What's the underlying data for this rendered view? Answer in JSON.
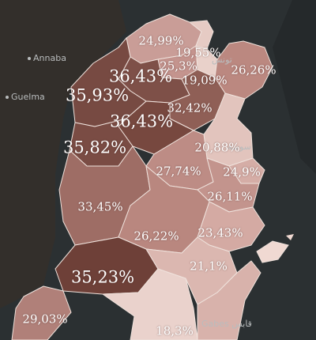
{
  "places": {
    "annaba": "Annaba",
    "guelma": "Guelma",
    "gabes": "Gabes",
    "gabes_ar": "قابس",
    "sousse_ar": "سوسة",
    "tunis_ar": "تونس"
  },
  "regions": [
    {
      "id": "bizerte",
      "value": "24,99%"
    },
    {
      "id": "ariana",
      "value": "19,55%"
    },
    {
      "id": "manouba",
      "value": "25,3%"
    },
    {
      "id": "tunis",
      "value": "19,09%"
    },
    {
      "id": "nabeul",
      "value": "26,26%"
    },
    {
      "id": "beja",
      "value": "36,43%"
    },
    {
      "id": "jendouba",
      "value": "35,93%"
    },
    {
      "id": "zaghouan",
      "value": "32,42%"
    },
    {
      "id": "siliana",
      "value": "36,43%"
    },
    {
      "id": "kef",
      "value": "35,82%"
    },
    {
      "id": "sousse",
      "value": "20,88%"
    },
    {
      "id": "kairouan",
      "value": "27,74%"
    },
    {
      "id": "monastir",
      "value": "24,9%"
    },
    {
      "id": "mahdia",
      "value": "26,11%"
    },
    {
      "id": "kasserine",
      "value": "33,45%"
    },
    {
      "id": "sidibouzid",
      "value": "26,22%"
    },
    {
      "id": "sfax",
      "value": "23,43%"
    },
    {
      "id": "gafsa",
      "value": "35,23%"
    },
    {
      "id": "tozeur",
      "value": "29,03%"
    },
    {
      "id": "kebili",
      "value": "18,3%"
    },
    {
      "id": "gabes",
      "value": "21,1%"
    }
  ],
  "colors": {
    "background": "#2b3032",
    "land": "#3a3026",
    "border": "#efe2dc",
    "label": "#ffffff"
  }
}
